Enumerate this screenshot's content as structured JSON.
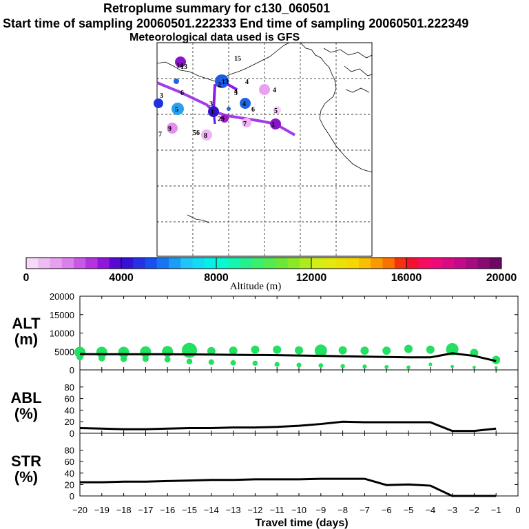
{
  "header": {
    "title": "Retroplume summary for c130_060501",
    "start_end": "Start time of sampling 20060501.222333     End time of sampling 20060501.222349",
    "met": "Meteorological data used is GFS"
  },
  "colorbar": {
    "label": "Altitude (m)",
    "ticks": [
      "0",
      "4000",
      "8000",
      "12000",
      "16000",
      "20000"
    ],
    "range": [
      0,
      20000
    ]
  },
  "map": {
    "description_labels": [
      "15",
      "14",
      "13",
      "13",
      "2",
      "6",
      "3",
      "3",
      "4",
      "4",
      "5",
      "5",
      "9",
      "7",
      "8",
      "56",
      "29",
      "1",
      "4",
      "6",
      "7",
      "1",
      "4",
      "5"
    ]
  },
  "chart_data": [
    {
      "type": "line",
      "panel": "ALT",
      "ylabel_line1": "ALT",
      "ylabel_line2": "(m)",
      "ylim": [
        0,
        20000
      ],
      "yticks": [
        "20000",
        "15000",
        "10000",
        "5000",
        "0"
      ],
      "x": [
        -20,
        -19,
        -18,
        -17,
        -16,
        -15,
        -14,
        -13,
        -12,
        -11,
        -10,
        -9,
        -8,
        -7,
        -6,
        -5,
        -4,
        -3,
        -2,
        -1
      ],
      "series": [
        {
          "name": "mean altitude",
          "values": [
            4300,
            4250,
            4250,
            4250,
            4250,
            4200,
            4150,
            4100,
            4050,
            4000,
            3900,
            3800,
            3700,
            3600,
            3500,
            3400,
            3400,
            4500,
            3800,
            2400
          ]
        },
        {
          "name": "cluster upper",
          "values": [
            4800,
            4800,
            4800,
            4900,
            5000,
            5300,
            5100,
            5200,
            5500,
            5500,
            5300,
            5200,
            5300,
            5200,
            5200,
            5700,
            5500,
            5600,
            4600,
            2700
          ]
        },
        {
          "name": "cluster lower",
          "values": [
            3500,
            3200,
            3000,
            3000,
            2800,
            2300,
            2100,
            1900,
            1800,
            1500,
            1300,
            1200,
            1000,
            900,
            800,
            700,
            1500,
            900,
            700,
            600
          ]
        }
      ]
    },
    {
      "type": "line",
      "panel": "ABL",
      "ylabel_line1": "ABL",
      "ylabel_line2": "(%)",
      "ylim": [
        0,
        100
      ],
      "yticks": [
        "80",
        "60",
        "40",
        "20",
        "0"
      ],
      "x": [
        -20,
        -19,
        -18,
        -17,
        -16,
        -15,
        -14,
        -13,
        -12,
        -11,
        -10,
        -9,
        -8,
        -7,
        -6,
        -5,
        -4,
        -3,
        -2,
        -1
      ],
      "values": [
        9,
        8,
        7,
        7,
        8,
        9,
        9,
        10,
        10,
        11,
        13,
        16,
        20,
        19,
        19,
        19,
        19,
        4,
        4,
        8
      ]
    },
    {
      "type": "line",
      "panel": "STR",
      "ylabel_line1": "STR",
      "ylabel_line2": "(%)",
      "ylim": [
        0,
        100
      ],
      "yticks": [
        "80",
        "60",
        "40",
        "20",
        "0"
      ],
      "x": [
        -20,
        -19,
        -18,
        -17,
        -16,
        -15,
        -14,
        -13,
        -12,
        -11,
        -10,
        -9,
        -8,
        -7,
        -6,
        -5,
        -4,
        -3,
        -2,
        -1
      ],
      "values": [
        24,
        24,
        25,
        25,
        26,
        27,
        28,
        28,
        29,
        29,
        29,
        30,
        30,
        30,
        19,
        20,
        18,
        0,
        0,
        0
      ]
    }
  ],
  "xaxis": {
    "label": "Travel time (days)",
    "ticks": [
      "−20",
      "−19",
      "−18",
      "−17",
      "−16",
      "−15",
      "−14",
      "−13",
      "−12",
      "−11",
      "−10",
      "−9",
      "−8",
      "−7",
      "−6",
      "−5",
      "−4",
      "−3",
      "−2",
      "−1",
      "0"
    ]
  }
}
